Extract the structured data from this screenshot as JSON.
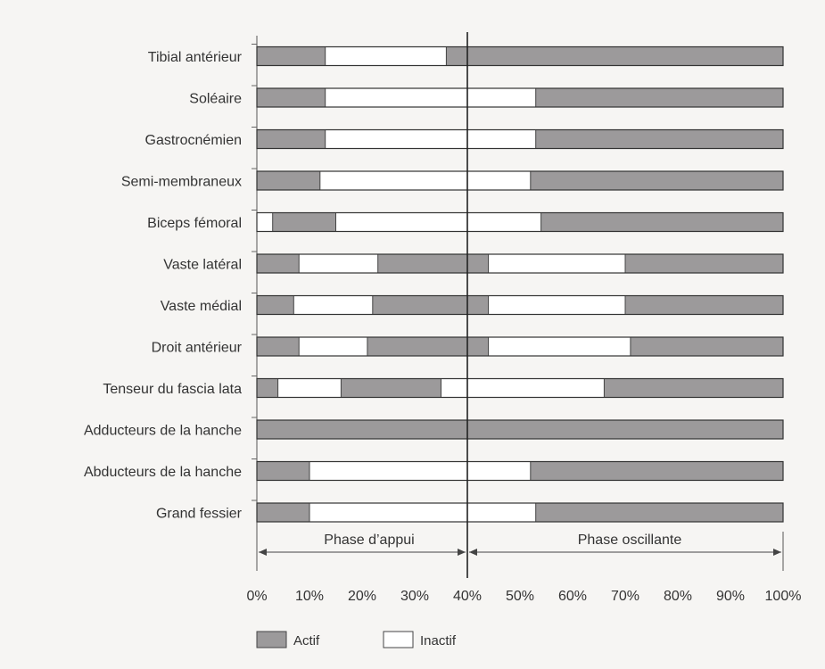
{
  "chart_data": {
    "type": "bar",
    "orientation": "horizontal",
    "xlim": [
      0,
      100
    ],
    "xticks": [
      0,
      10,
      20,
      30,
      40,
      50,
      60,
      70,
      80,
      90,
      100
    ],
    "xtick_labels": [
      "0%",
      "10%",
      "20%",
      "30%",
      "40%",
      "50%",
      "60%",
      "70%",
      "80%",
      "90%",
      "100%"
    ],
    "phase_divider": 40,
    "phases": [
      {
        "label": "Phase d’appui",
        "from": 0,
        "to": 40
      },
      {
        "label": "Phase oscillante",
        "from": 40,
        "to": 100
      }
    ],
    "legend": [
      {
        "key": "active",
        "label": "Actif",
        "color": "#9c9a9b"
      },
      {
        "key": "inactive",
        "label": "Inactif",
        "color": "#ffffff"
      }
    ],
    "legend_position": "bottom-left",
    "grid": false,
    "muscles": [
      {
        "name": "Tibial antérieur",
        "active": [
          [
            0,
            13
          ],
          [
            36,
            100
          ]
        ]
      },
      {
        "name": "Soléaire",
        "active": [
          [
            0,
            13
          ],
          [
            53,
            100
          ]
        ]
      },
      {
        "name": "Gastrocnémien",
        "active": [
          [
            0,
            13
          ],
          [
            53,
            100
          ]
        ]
      },
      {
        "name": "Semi-membraneux",
        "active": [
          [
            0,
            12
          ],
          [
            52,
            100
          ]
        ]
      },
      {
        "name": "Biceps fémoral",
        "active": [
          [
            3,
            15
          ],
          [
            54,
            100
          ]
        ]
      },
      {
        "name": "Vaste latéral",
        "active": [
          [
            0,
            8
          ],
          [
            23,
            44
          ],
          [
            70,
            100
          ]
        ]
      },
      {
        "name": "Vaste médial",
        "active": [
          [
            0,
            7
          ],
          [
            22,
            44
          ],
          [
            70,
            100
          ]
        ]
      },
      {
        "name": "Droit antérieur",
        "active": [
          [
            0,
            8
          ],
          [
            21,
            44
          ],
          [
            71,
            100
          ]
        ]
      },
      {
        "name": "Tenseur du fascia lata",
        "active": [
          [
            0,
            4
          ],
          [
            16,
            35
          ],
          [
            66,
            100
          ]
        ]
      },
      {
        "name": "Adducteurs de la hanche",
        "active": [
          [
            0,
            100
          ]
        ]
      },
      {
        "name": "Abducteurs de la hanche",
        "active": [
          [
            0,
            10
          ],
          [
            52,
            100
          ]
        ]
      },
      {
        "name": "Grand fessier",
        "active": [
          [
            0,
            10
          ],
          [
            53,
            100
          ]
        ]
      }
    ]
  }
}
